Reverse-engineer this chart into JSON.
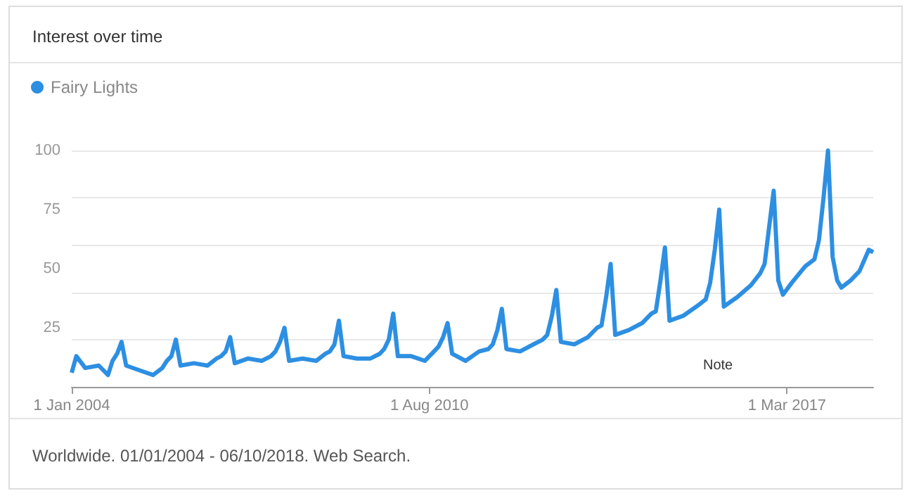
{
  "chart_data": {
    "type": "line",
    "title": "Interest over time",
    "x": [
      "2004-01",
      "2004-02",
      "2004-04",
      "2004-07",
      "2004-09",
      "2004-10",
      "2004-11",
      "2004-12",
      "2005-01",
      "2005-04",
      "2005-07",
      "2005-09",
      "2005-10",
      "2005-11",
      "2005-12",
      "2006-01",
      "2006-04",
      "2006-07",
      "2006-09",
      "2006-10",
      "2006-11",
      "2006-12",
      "2007-01",
      "2007-04",
      "2007-07",
      "2007-09",
      "2007-10",
      "2007-11",
      "2007-12",
      "2008-01",
      "2008-04",
      "2008-07",
      "2008-09",
      "2008-10",
      "2008-11",
      "2008-12",
      "2009-01",
      "2009-04",
      "2009-07",
      "2009-09",
      "2009-10",
      "2009-11",
      "2009-12",
      "2010-01",
      "2010-04",
      "2010-07",
      "2010-09",
      "2010-10",
      "2010-11",
      "2010-12",
      "2011-01",
      "2011-04",
      "2011-07",
      "2011-09",
      "2011-10",
      "2011-11",
      "2011-12",
      "2012-01",
      "2012-04",
      "2012-07",
      "2012-09",
      "2012-10",
      "2012-11",
      "2012-12",
      "2013-01",
      "2013-04",
      "2013-07",
      "2013-09",
      "2013-10",
      "2013-11",
      "2013-12",
      "2014-01",
      "2014-04",
      "2014-07",
      "2014-09",
      "2014-10",
      "2014-11",
      "2014-12",
      "2015-01",
      "2015-04",
      "2015-07",
      "2015-09",
      "2015-10",
      "2015-11",
      "2015-12",
      "2016-01",
      "2016-04",
      "2016-07",
      "2016-09",
      "2016-10",
      "2016-11",
      "2016-12",
      "2017-01",
      "2017-02",
      "2017-04",
      "2017-07",
      "2017-09",
      "2017-10",
      "2017-11",
      "2017-12",
      "2018-01",
      "2018-02",
      "2018-03",
      "2018-05",
      "2018-07",
      "2018-09",
      "2018-10"
    ],
    "series": [
      {
        "name": "Fairy Lights",
        "color": "#2d8fe2",
        "values": [
          6,
          13,
          8,
          9,
          5,
          11,
          14,
          19,
          9,
          7,
          5,
          8,
          11,
          13,
          20,
          9,
          10,
          9,
          12,
          13,
          15,
          21,
          10,
          12,
          11,
          13,
          15,
          19,
          25,
          11,
          12,
          11,
          14,
          15,
          18,
          28,
          13,
          12,
          12,
          14,
          16,
          20,
          31,
          13,
          13,
          11,
          15,
          17,
          21,
          27,
          14,
          11,
          15,
          16,
          18,
          24,
          33,
          16,
          15,
          18,
          20,
          22,
          30,
          41,
          19,
          18,
          21,
          25,
          26,
          38,
          52,
          22,
          24,
          27,
          31,
          32,
          45,
          59,
          28,
          30,
          34,
          37,
          44,
          58,
          75,
          34,
          38,
          43,
          48,
          52,
          68,
          83,
          45,
          39,
          44,
          51,
          54,
          62,
          80,
          100,
          55,
          45,
          42,
          45,
          49,
          58,
          57
        ]
      }
    ],
    "xlim": [
      "2004-01",
      "2018-10"
    ],
    "xticks": [
      {
        "value": "2004-01-01",
        "label": "1 Jan 2004"
      },
      {
        "value": "2010-08-01",
        "label": "1 Aug 2010"
      },
      {
        "value": "2017-03-01",
        "label": "1 Mar 2017"
      }
    ],
    "ylim": [
      0,
      100
    ],
    "yticks": [
      {
        "value": 0,
        "label": null
      },
      25,
      50,
      75,
      100
    ],
    "grid": "y",
    "legend": "top left",
    "marker": "none",
    "line_style": "solid",
    "annotations": [
      "Note",
      "Worldwide. 01/01/2004 - 06/10/2018. Web Search."
    ]
  }
}
